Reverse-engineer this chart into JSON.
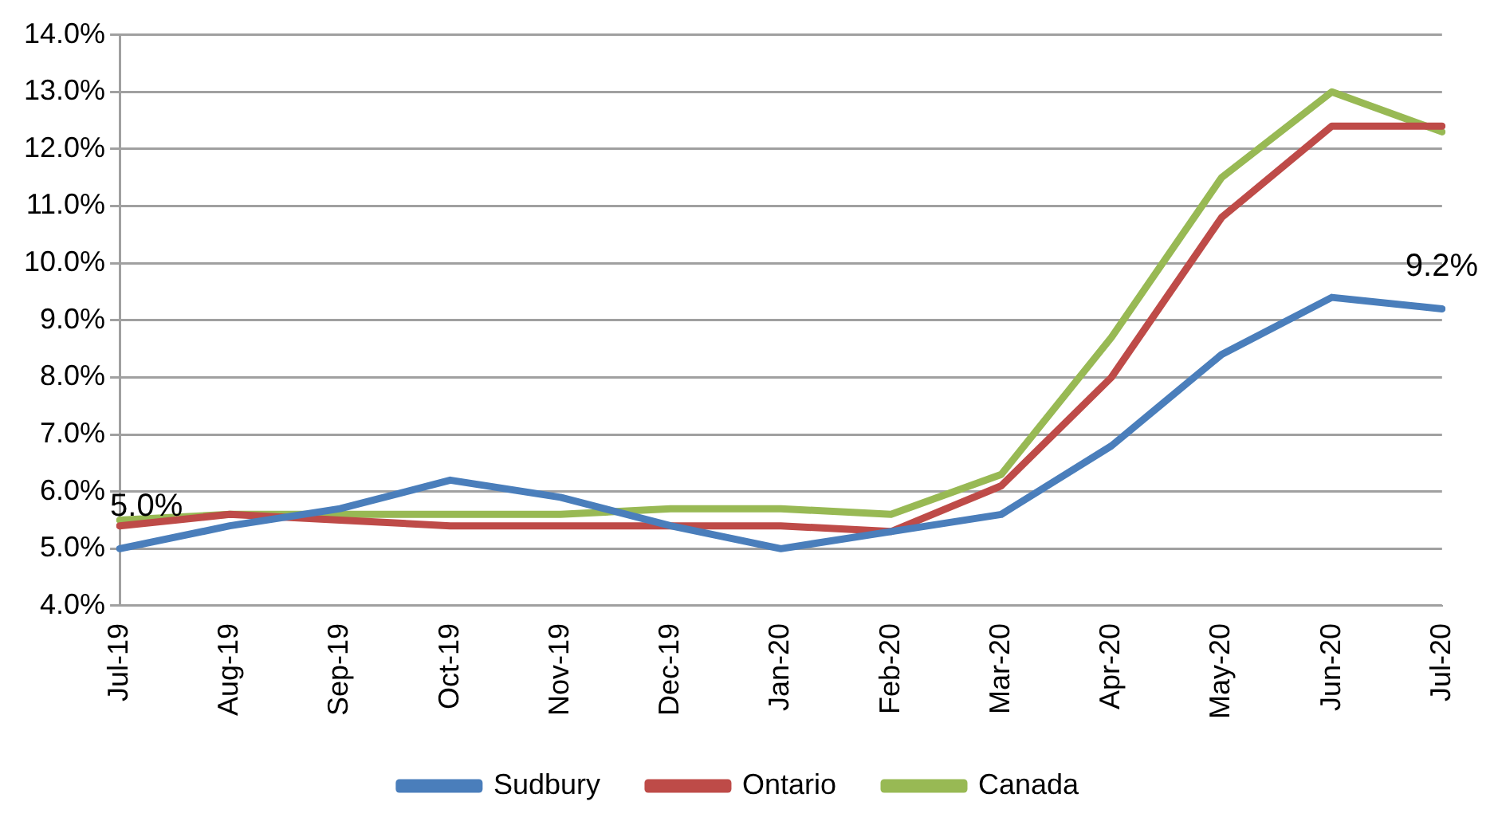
{
  "chart_data": {
    "type": "line",
    "categories": [
      "Jul-19",
      "Aug-19",
      "Sep-19",
      "Oct-19",
      "Nov-19",
      "Dec-19",
      "Jan-20",
      "Feb-20",
      "Mar-20",
      "Apr-20",
      "May-20",
      "Jun-20",
      "Jul-20"
    ],
    "series": [
      {
        "name": "Sudbury",
        "color": "#4a7ebb",
        "values": [
          5.0,
          5.4,
          5.7,
          6.2,
          5.9,
          5.4,
          5.0,
          5.3,
          5.6,
          6.8,
          8.4,
          9.4,
          9.2
        ]
      },
      {
        "name": "Ontario",
        "color": "#be4b48",
        "values": [
          5.4,
          5.6,
          5.5,
          5.4,
          5.4,
          5.4,
          5.4,
          5.3,
          6.1,
          8.0,
          10.8,
          12.4,
          12.4
        ]
      },
      {
        "name": "Canada",
        "color": "#98b954",
        "values": [
          5.5,
          5.6,
          5.6,
          5.6,
          5.6,
          5.7,
          5.7,
          5.6,
          6.3,
          8.7,
          11.5,
          13.0,
          12.3
        ]
      }
    ],
    "ylim": [
      4,
      14
    ],
    "yticks": [
      {
        "value": 4,
        "label": "4.0%"
      },
      {
        "value": 5,
        "label": "5.0%"
      },
      {
        "value": 6,
        "label": "6.0%"
      },
      {
        "value": 7,
        "label": "7.0%"
      },
      {
        "value": 8,
        "label": "8.0%"
      },
      {
        "value": 9,
        "label": "9.0%"
      },
      {
        "value": 10,
        "label": "10.0%"
      },
      {
        "value": 11,
        "label": "11.0%"
      },
      {
        "value": 12,
        "label": "12.0%"
      },
      {
        "value": 13,
        "label": "13.0%"
      },
      {
        "value": 14,
        "label": "14.0%"
      }
    ],
    "annotations": [
      {
        "text": "5.0%",
        "x": "Jul-19",
        "y": 5.0
      },
      {
        "text": "9.2%",
        "x": "Jul-20",
        "y": 9.2
      }
    ],
    "grid": "y",
    "legend": "bottom",
    "marker": "none",
    "line_style": "solid"
  }
}
